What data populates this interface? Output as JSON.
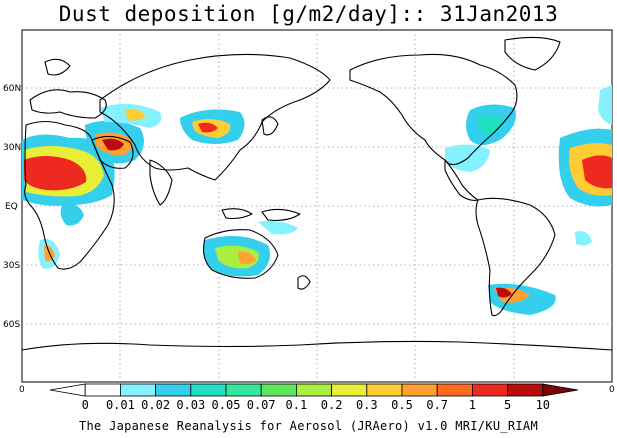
{
  "title": "Dust deposition [g/m2/day]:: 31Jan2013",
  "credit": "The Japanese Reanalysis for Aerosol (JRAero) v1.0 MRI/KU_RIAM",
  "lat_ticks": [
    "60N",
    "30N",
    "EQ",
    "30S",
    "60S"
  ],
  "x_axis_ends": [
    "0",
    "0"
  ],
  "colorbar": {
    "labels": [
      "0",
      "0.01",
      "0.02",
      "0.03",
      "0.05",
      "0.07",
      "0.1",
      "0.2",
      "0.3",
      "0.5",
      "0.7",
      "1",
      "5",
      "10"
    ],
    "colors": [
      "#ffffff",
      "#ffffff",
      "#85f0ff",
      "#35cfee",
      "#1fe0c0",
      "#35e8a0",
      "#5ee65a",
      "#aaee40",
      "#e8ee35",
      "#ffcc33",
      "#ffa030",
      "#ff6a20",
      "#ee2a20",
      "#bb0c0c",
      "#7a0505"
    ]
  },
  "colors": {
    "land_outline": "#000000",
    "grid": "#999999"
  }
}
